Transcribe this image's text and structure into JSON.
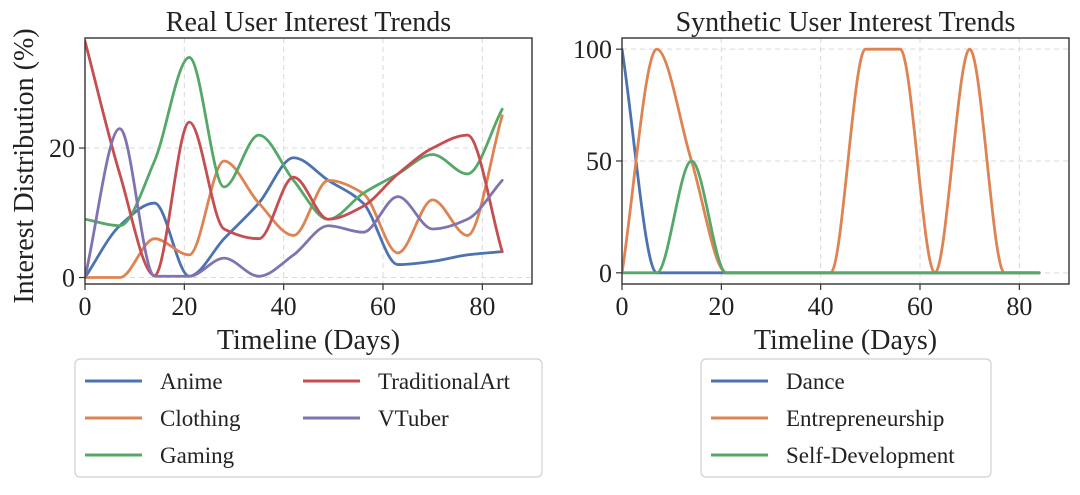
{
  "chart_data": [
    {
      "type": "line",
      "title": "Real User Interest Trends",
      "xlabel": "Timeline (Days)",
      "ylabel": "Interest Distribution (%)",
      "xlim": [
        0,
        90
      ],
      "ylim": [
        -1,
        37
      ],
      "xticks": [
        0,
        20,
        40,
        60,
        80
      ],
      "yticks": [
        0,
        20
      ],
      "grid": true,
      "legend_position": "below",
      "legend_columns": 2,
      "x": [
        0,
        7,
        14,
        21,
        28,
        35,
        42,
        49,
        56,
        63,
        70,
        77,
        84
      ],
      "series": [
        {
          "name": "Anime",
          "color": "#4c72b0",
          "values": [
            0,
            8,
            11.5,
            0.2,
            6,
            11.5,
            18.5,
            15,
            11.5,
            2,
            2.5,
            3.5,
            4
          ]
        },
        {
          "name": "Clothing",
          "color": "#dd8452",
          "values": [
            0,
            0,
            6,
            3.5,
            18,
            11.5,
            6.5,
            15,
            13,
            3.8,
            12,
            6.5,
            25
          ]
        },
        {
          "name": "Gaming",
          "color": "#55a868",
          "values": [
            9,
            8,
            18,
            34,
            14,
            22,
            15,
            9,
            13,
            16,
            19,
            16,
            26
          ]
        },
        {
          "name": "TraditionalArt",
          "color": "#c44e52",
          "values": [
            36.5,
            16,
            0.3,
            24,
            7.5,
            6,
            15.5,
            9,
            11,
            16,
            20,
            22,
            4
          ]
        },
        {
          "name": "VTuber",
          "color": "#8172b2",
          "values": [
            0,
            23,
            0.2,
            0.2,
            3,
            0.2,
            3.5,
            8,
            7,
            12.5,
            7.5,
            9,
            15
          ]
        }
      ]
    },
    {
      "type": "line",
      "title": "Synthetic User Interest Trends",
      "xlabel": "Timeline (Days)",
      "ylabel": "",
      "xlim": [
        0,
        90
      ],
      "ylim": [
        -5,
        105
      ],
      "xticks": [
        0,
        20,
        40,
        60,
        80
      ],
      "yticks": [
        0,
        50,
        100
      ],
      "grid": true,
      "legend_position": "below",
      "legend_columns": 1,
      "x": [
        0,
        7,
        14,
        21,
        28,
        35,
        42,
        49,
        56,
        63,
        70,
        77,
        84
      ],
      "series": [
        {
          "name": "Dance",
          "color": "#4c72b0",
          "values": [
            100,
            0,
            0,
            0,
            0,
            0,
            0,
            0,
            0,
            0,
            0,
            0,
            0
          ]
        },
        {
          "name": "Entrepreneurship",
          "color": "#dd8452",
          "values": [
            0,
            100,
            50,
            0,
            0,
            0,
            0,
            100,
            100,
            0,
            100,
            0,
            0
          ]
        },
        {
          "name": "Self-Development",
          "color": "#55a868",
          "values": [
            0,
            0,
            50,
            0,
            0,
            0,
            0,
            0,
            0,
            0,
            0,
            0,
            0
          ]
        }
      ]
    }
  ]
}
